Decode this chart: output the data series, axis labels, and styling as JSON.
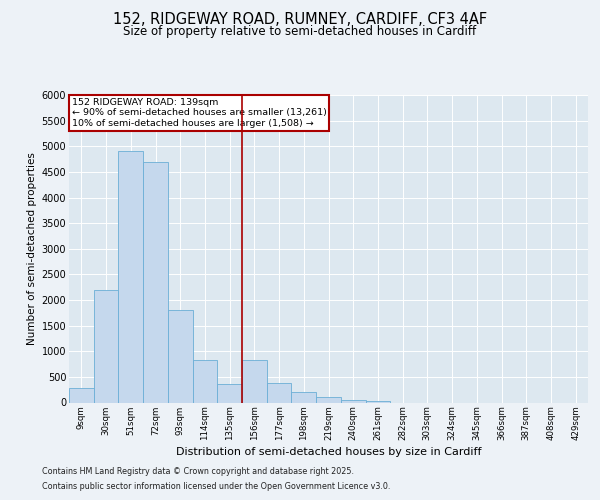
{
  "title_line1": "152, RIDGEWAY ROAD, RUMNEY, CARDIFF, CF3 4AF",
  "title_line2": "Size of property relative to semi-detached houses in Cardiff",
  "xlabel": "Distribution of semi-detached houses by size in Cardiff",
  "ylabel": "Number of semi-detached properties",
  "footer_line1": "Contains HM Land Registry data © Crown copyright and database right 2025.",
  "footer_line2": "Contains public sector information licensed under the Open Government Licence v3.0.",
  "bar_labels": [
    "9sqm",
    "30sqm",
    "51sqm",
    "72sqm",
    "93sqm",
    "114sqm",
    "135sqm",
    "156sqm",
    "177sqm",
    "198sqm",
    "219sqm",
    "240sqm",
    "261sqm",
    "282sqm",
    "303sqm",
    "324sqm",
    "345sqm",
    "366sqm",
    "387sqm",
    "408sqm",
    "429sqm"
  ],
  "bar_values": [
    280,
    2200,
    4900,
    4700,
    1800,
    820,
    370,
    820,
    380,
    210,
    110,
    50,
    20,
    0,
    0,
    0,
    0,
    0,
    0,
    0,
    0
  ],
  "bar_color": "#c5d8ed",
  "bar_edge_color": "#6baed6",
  "vline_index": 6,
  "property_label": "152 RIDGEWAY ROAD: 139sqm",
  "annotation_line1": "← 90% of semi-detached houses are smaller (13,261)",
  "annotation_line2": "10% of semi-detached houses are larger (1,508) →",
  "vline_color": "#aa0000",
  "annotation_box_color": "#ffffff",
  "annotation_box_edge": "#aa0000",
  "ylim": [
    0,
    6000
  ],
  "yticks": [
    0,
    500,
    1000,
    1500,
    2000,
    2500,
    3000,
    3500,
    4000,
    4500,
    5000,
    5500,
    6000
  ],
  "background_color": "#edf2f7",
  "plot_bg_color": "#dde8f0",
  "grid_color": "#ffffff",
  "title_fontsize": 10.5,
  "subtitle_fontsize": 8.5
}
